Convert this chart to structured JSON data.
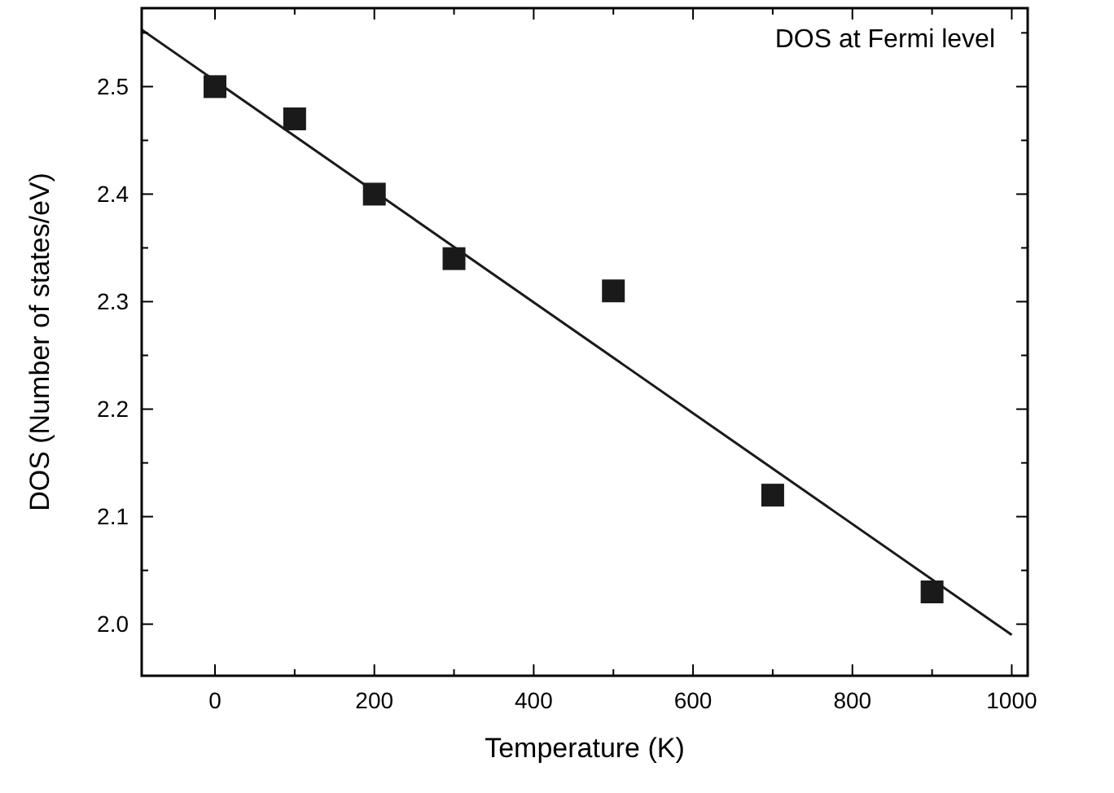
{
  "chart_data": {
    "type": "scatter",
    "xlabel": "Temperature (K)",
    "ylabel": "DOS (Number of states/eV)",
    "annotations": [
      "DOS at Fermi level"
    ],
    "xlim": [
      -92,
      1020
    ],
    "ylim": [
      1.952,
      2.573
    ],
    "xticks": [
      0,
      {
        "value": 100,
        "label": null
      },
      200,
      {
        "value": 300,
        "label": null
      },
      400,
      {
        "value": 500,
        "label": null
      },
      600,
      {
        "value": 700,
        "label": null
      },
      800,
      {
        "value": 900,
        "label": null
      },
      1000
    ],
    "yticks": [
      "2.0",
      {
        "value": 2.05,
        "label": null
      },
      2.1,
      {
        "value": 2.15,
        "label": null
      },
      2.2,
      {
        "value": 2.25,
        "label": null
      },
      2.3,
      {
        "value": 2.35,
        "label": null
      },
      2.4,
      {
        "value": 2.45,
        "label": null
      },
      2.5,
      {
        "value": 2.55,
        "label": null
      }
    ],
    "grid": false,
    "series": [
      {
        "marker": "square",
        "color": "#1a1a1a",
        "x": [
          0,
          100,
          200,
          300,
          500,
          700,
          900
        ],
        "values": [
          2.5,
          2.47,
          2.4,
          2.34,
          2.31,
          2.12,
          2.03
        ]
      },
      {
        "type": "line",
        "marker": "none",
        "color": "#1a1a1a",
        "x": [
          -92,
          1000
        ],
        "values": [
          2.553,
          1.99
        ]
      }
    ]
  }
}
